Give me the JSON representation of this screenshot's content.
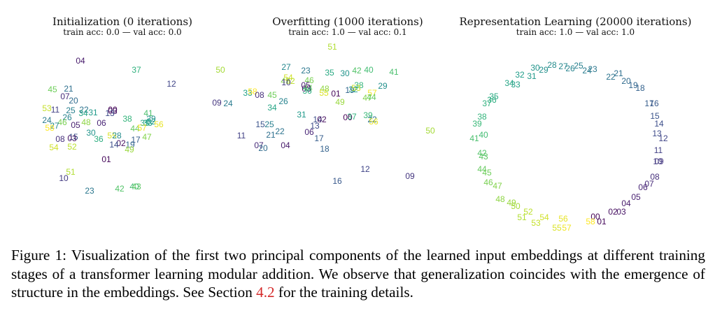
{
  "panels": [
    {
      "title": "Initialization (0 iterations)",
      "subtitle": "train acc: 0.0 — val acc: 0.0",
      "points": [
        {
          "label": "04",
          "x": -60,
          "y": 88
        },
        {
          "label": "37",
          "x": 20,
          "y": 75
        },
        {
          "label": "50",
          "x": 140,
          "y": 75
        },
        {
          "label": "12",
          "x": 70,
          "y": 55
        },
        {
          "label": "45",
          "x": -100,
          "y": 47
        },
        {
          "label": "21",
          "x": -77,
          "y": 48
        },
        {
          "label": "07",
          "x": -82,
          "y": 37
        },
        {
          "label": "20",
          "x": -70,
          "y": 31
        },
        {
          "label": "09",
          "x": 135,
          "y": 28
        },
        {
          "label": "53",
          "x": -108,
          "y": 20
        },
        {
          "label": "11",
          "x": -96,
          "y": 18
        },
        {
          "label": "25",
          "x": -74,
          "y": 17
        },
        {
          "label": "22",
          "x": -55,
          "y": 18
        },
        {
          "label": "34",
          "x": -56,
          "y": 13
        },
        {
          "label": "31",
          "x": -42,
          "y": 14
        },
        {
          "label": "00",
          "x": -14,
          "y": 18
        },
        {
          "label": "03",
          "x": -14,
          "y": 16
        },
        {
          "label": "13",
          "x": -18,
          "y": 13
        },
        {
          "label": "26",
          "x": -79,
          "y": 7
        },
        {
          "label": "24",
          "x": -108,
          "y": 3
        },
        {
          "label": "46",
          "x": -86,
          "y": 0
        },
        {
          "label": "48",
          "x": -52,
          "y": 0
        },
        {
          "label": "06",
          "x": -30,
          "y": -1
        },
        {
          "label": "38",
          "x": 7,
          "y": 5
        },
        {
          "label": "41",
          "x": 37,
          "y": 13
        },
        {
          "label": "29",
          "x": 41,
          "y": 5
        },
        {
          "label": "32",
          "x": 41,
          "y": 1
        },
        {
          "label": "35",
          "x": 32,
          "y": -1
        },
        {
          "label": "33",
          "x": 36,
          "y": -1
        },
        {
          "label": "05",
          "x": -67,
          "y": -4
        },
        {
          "label": "27",
          "x": -97,
          "y": -5
        },
        {
          "label": "58",
          "x": -104,
          "y": -8
        },
        {
          "label": "56",
          "x": 52,
          "y": -3
        },
        {
          "label": "44",
          "x": 18,
          "y": -9
        },
        {
          "label": "57",
          "x": 28,
          "y": -8
        },
        {
          "label": "30",
          "x": -45,
          "y": -15
        },
        {
          "label": "55",
          "x": -15,
          "y": -19
        },
        {
          "label": "28",
          "x": -8,
          "y": -19
        },
        {
          "label": "15",
          "x": -70,
          "y": -21
        },
        {
          "label": "03",
          "x": -72,
          "y": -23
        },
        {
          "label": "08",
          "x": -89,
          "y": -24
        },
        {
          "label": "36",
          "x": -34,
          "y": -24
        },
        {
          "label": "17",
          "x": 19,
          "y": -25
        },
        {
          "label": "47",
          "x": 35,
          "y": -21
        },
        {
          "label": "02",
          "x": -2,
          "y": -30
        },
        {
          "label": "14",
          "x": -12,
          "y": -32
        },
        {
          "label": "19",
          "x": 11,
          "y": -32
        },
        {
          "label": "54",
          "x": -98,
          "y": -36
        },
        {
          "label": "52",
          "x": -72,
          "y": -35
        },
        {
          "label": "49",
          "x": 10,
          "y": -39
        },
        {
          "label": "01",
          "x": -23,
          "y": -53
        },
        {
          "label": "51",
          "x": -74,
          "y": -71
        },
        {
          "label": "10",
          "x": -84,
          "y": -80
        },
        {
          "label": "42",
          "x": -4,
          "y": -95
        },
        {
          "label": "40",
          "x": 17,
          "y": -92
        },
        {
          "label": "43",
          "x": 20,
          "y": -92
        },
        {
          "label": "23",
          "x": -47,
          "y": -98
        }
      ]
    },
    {
      "title": "Overfitting (1000 iterations)",
      "subtitle": "train acc: 1.0 — val acc: 0.1",
      "points": [
        {
          "label": "51",
          "x": -25,
          "y": 93
        },
        {
          "label": "27",
          "x": -91,
          "y": 64
        },
        {
          "label": "23",
          "x": -63,
          "y": 59
        },
        {
          "label": "35",
          "x": -29,
          "y": 56
        },
        {
          "label": "30",
          "x": -7,
          "y": 55
        },
        {
          "label": "42",
          "x": 10,
          "y": 59
        },
        {
          "label": "40",
          "x": 27,
          "y": 60
        },
        {
          "label": "41",
          "x": 63,
          "y": 57
        },
        {
          "label": "54",
          "x": -88,
          "y": 49
        },
        {
          "label": "47",
          "x": -92,
          "y": 44
        },
        {
          "label": "52",
          "x": -85,
          "y": 44
        },
        {
          "label": "10",
          "x": -91,
          "y": 42
        },
        {
          "label": "46",
          "x": -58,
          "y": 45
        },
        {
          "label": "05",
          "x": -63,
          "y": 38
        },
        {
          "label": "29",
          "x": 47,
          "y": 37
        },
        {
          "label": "38",
          "x": 13,
          "y": 38
        },
        {
          "label": "44",
          "x": -60,
          "y": 34
        },
        {
          "label": "03",
          "x": -62,
          "y": 33
        },
        {
          "label": "36",
          "x": -61,
          "y": 30
        },
        {
          "label": "48",
          "x": -36,
          "y": 33
        },
        {
          "label": "19",
          "x": 0,
          "y": 31
        },
        {
          "label": "32",
          "x": 5,
          "y": 32
        },
        {
          "label": "53",
          "x": 9,
          "y": 34
        },
        {
          "label": "33",
          "x": -146,
          "y": 27
        },
        {
          "label": "58",
          "x": -139,
          "y": 29
        },
        {
          "label": "45",
          "x": -111,
          "y": 24
        },
        {
          "label": "08",
          "x": -129,
          "y": 24
        },
        {
          "label": "55",
          "x": -37,
          "y": 27
        },
        {
          "label": "01",
          "x": -20,
          "y": 26
        },
        {
          "label": "57",
          "x": 32,
          "y": 27
        },
        {
          "label": "47",
          "x": 25,
          "y": 20
        },
        {
          "label": "44",
          "x": 31,
          "y": 21
        },
        {
          "label": "26",
          "x": -95,
          "y": 15
        },
        {
          "label": "24",
          "x": -174,
          "y": 12
        },
        {
          "label": "49",
          "x": -14,
          "y": 14
        },
        {
          "label": "34",
          "x": -111,
          "y": 6
        },
        {
          "label": "31",
          "x": -69,
          "y": -4
        },
        {
          "label": "39",
          "x": 26,
          "y": -5
        },
        {
          "label": "00",
          "x": -3,
          "y": -8
        },
        {
          "label": "37",
          "x": 3,
          "y": -7
        },
        {
          "label": "22",
          "x": 32,
          "y": -11
        },
        {
          "label": "14",
          "x": -46,
          "y": -11
        },
        {
          "label": "02",
          "x": -40,
          "y": -11
        },
        {
          "label": "56",
          "x": 34,
          "y": -14
        },
        {
          "label": "15",
          "x": -128,
          "y": -18
        },
        {
          "label": "25",
          "x": -115,
          "y": -18
        },
        {
          "label": "13",
          "x": -50,
          "y": -20
        },
        {
          "label": "22",
          "x": -100,
          "y": -28
        },
        {
          "label": "21",
          "x": -113,
          "y": -33
        },
        {
          "label": "06",
          "x": -58,
          "y": -29
        },
        {
          "label": "50",
          "x": 115,
          "y": -27
        },
        {
          "label": "11",
          "x": -155,
          "y": -34
        },
        {
          "label": "17",
          "x": -44,
          "y": -38
        },
        {
          "label": "07",
          "x": -130,
          "y": -48
        },
        {
          "label": "20",
          "x": -124,
          "y": -52
        },
        {
          "label": "04",
          "x": -92,
          "y": -48
        },
        {
          "label": "18",
          "x": -36,
          "y": -53
        },
        {
          "label": "12",
          "x": 22,
          "y": -82
        },
        {
          "label": "09",
          "x": 86,
          "y": -92
        },
        {
          "label": "16",
          "x": -18,
          "y": -99
        }
      ]
    },
    {
      "title": "Representation Learning (20000 iterations)",
      "subtitle": "train acc: 1.0 — val acc: 1.0",
      "points": [
        {
          "label": "28",
          "x": -28,
          "y": 94
        },
        {
          "label": "27",
          "x": -12,
          "y": 92
        },
        {
          "label": "25",
          "x": 10,
          "y": 93
        },
        {
          "label": "26",
          "x": -2,
          "y": 89
        },
        {
          "label": "30",
          "x": -52,
          "y": 90
        },
        {
          "label": "29",
          "x": -40,
          "y": 87
        },
        {
          "label": "24",
          "x": 22,
          "y": 86
        },
        {
          "label": "23",
          "x": 30,
          "y": 88
        },
        {
          "label": "32",
          "x": -74,
          "y": 80
        },
        {
          "label": "31",
          "x": -57,
          "y": 78
        },
        {
          "label": "21",
          "x": 67,
          "y": 82
        },
        {
          "label": "22",
          "x": 56,
          "y": 77
        },
        {
          "label": "20",
          "x": 78,
          "y": 71
        },
        {
          "label": "19",
          "x": 88,
          "y": 65
        },
        {
          "label": "18",
          "x": 98,
          "y": 61
        },
        {
          "label": "34",
          "x": -89,
          "y": 68
        },
        {
          "label": "33",
          "x": -80,
          "y": 66
        },
        {
          "label": "35",
          "x": -111,
          "y": 49
        },
        {
          "label": "36",
          "x": -114,
          "y": 44
        },
        {
          "label": "37",
          "x": -121,
          "y": 39
        },
        {
          "label": "17",
          "x": 111,
          "y": 39
        },
        {
          "label": "16",
          "x": 118,
          "y": 39
        },
        {
          "label": "38",
          "x": -128,
          "y": 20
        },
        {
          "label": "15",
          "x": 119,
          "y": 21
        },
        {
          "label": "39",
          "x": -135,
          "y": 10
        },
        {
          "label": "14",
          "x": 125,
          "y": 10
        },
        {
          "label": "40",
          "x": -126,
          "y": -6
        },
        {
          "label": "13",
          "x": 122,
          "y": -4
        },
        {
          "label": "41",
          "x": -139,
          "y": -11
        },
        {
          "label": "12",
          "x": 131,
          "y": -11
        },
        {
          "label": "11",
          "x": 124,
          "y": -28
        },
        {
          "label": "42",
          "x": -128,
          "y": -32
        },
        {
          "label": "43",
          "x": -126,
          "y": -37
        },
        {
          "label": "09",
          "x": 125,
          "y": -44
        },
        {
          "label": "10",
          "x": 123,
          "y": -44
        },
        {
          "label": "44",
          "x": -128,
          "y": -55
        },
        {
          "label": "45",
          "x": -121,
          "y": -60
        },
        {
          "label": "08",
          "x": 119,
          "y": -66
        },
        {
          "label": "46",
          "x": -119,
          "y": -74
        },
        {
          "label": "07",
          "x": 111,
          "y": -76
        },
        {
          "label": "47",
          "x": -106,
          "y": -79
        },
        {
          "label": "06",
          "x": 102,
          "y": -81
        },
        {
          "label": "05",
          "x": 92,
          "y": -95
        },
        {
          "label": "04",
          "x": 78,
          "y": -104
        },
        {
          "label": "48",
          "x": -102,
          "y": -98
        },
        {
          "label": "49",
          "x": -86,
          "y": -103
        },
        {
          "label": "50",
          "x": -80,
          "y": -108
        },
        {
          "label": "02",
          "x": 59,
          "y": -116
        },
        {
          "label": "03",
          "x": 71,
          "y": -116
        },
        {
          "label": "52",
          "x": -62,
          "y": -116
        },
        {
          "label": "51",
          "x": -71,
          "y": -124
        },
        {
          "label": "54",
          "x": -39,
          "y": -124
        },
        {
          "label": "00",
          "x": 34,
          "y": -123
        },
        {
          "label": "01",
          "x": 43,
          "y": -130
        },
        {
          "label": "58",
          "x": 27,
          "y": -130
        },
        {
          "label": "53",
          "x": -51,
          "y": -132
        },
        {
          "label": "56",
          "x": -12,
          "y": -126
        },
        {
          "label": "55",
          "x": -21,
          "y": -139
        },
        {
          "label": "57",
          "x": -7,
          "y": -139
        }
      ]
    }
  ],
  "caption": {
    "lead": "Figure 1: Visualization of the first two principal components of the learned input embeddings at different training stages of a transformer learning modular addition. We observe that generalization coincides with the emergence of structure in the embeddings. See Section ",
    "ref": "4.2",
    "tail": " for the training details."
  },
  "colors": {
    "colormap": "viridis",
    "viridis_stops": [
      "#440154",
      "#482878",
      "#3e4989",
      "#31688e",
      "#26828e",
      "#1f9e89",
      "#35b779",
      "#6ece58",
      "#b5de2b",
      "#fde725"
    ],
    "caption_ref": "#d42a2a"
  }
}
